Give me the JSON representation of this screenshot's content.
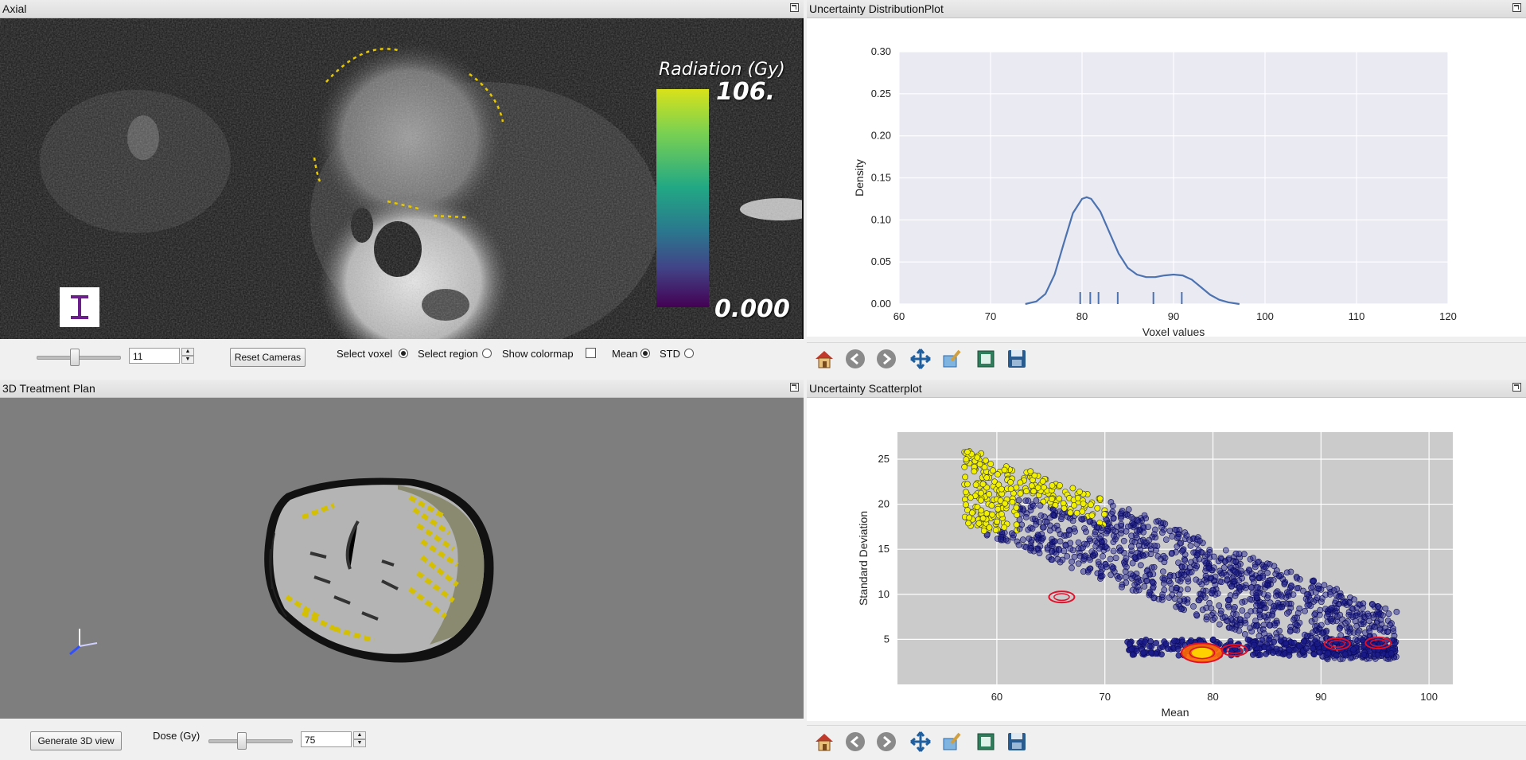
{
  "axial": {
    "title": "Axial",
    "colorbar": {
      "title": "Radiation (Gy)",
      "max_label": "106.",
      "min_label": "0.000"
    },
    "slice_value": "11",
    "reset_label": "Reset Cameras",
    "select_voxel_label": "Select voxel",
    "select_region_label": "Select region",
    "show_colormap_label": "Show colormap",
    "mean_label": "Mean",
    "std_label": "STD",
    "select_voxel_checked": true,
    "select_region_checked": false,
    "show_colormap_checked": false,
    "mean_checked": true,
    "std_checked": false,
    "slider_fraction": 0.45
  },
  "treatment3d": {
    "title": "3D Treatment Plan",
    "generate_label": "Generate 3D view",
    "dose_label": "Dose (Gy)",
    "dose_value": "75",
    "slider_fraction": 0.38
  },
  "distribution": {
    "title": "Uncertainty DistributionPlot",
    "chart_data": {
      "type": "line",
      "xlabel": "Voxel values",
      "ylabel": "Density",
      "xlim": [
        60,
        120
      ],
      "ylim": [
        0,
        0.3
      ],
      "xticks": [
        "60",
        "70",
        "80",
        "90",
        "100",
        "110",
        "120"
      ],
      "yticks": [
        "0.00",
        "0.05",
        "0.10",
        "0.15",
        "0.20",
        "0.25",
        "0.30"
      ],
      "x": [
        73.8,
        75,
        76,
        77,
        78,
        79,
        80,
        80.5,
        81,
        82,
        83,
        84,
        85,
        86,
        87,
        88,
        89,
        90,
        91,
        92,
        93,
        94,
        95,
        96,
        97.2
      ],
      "y": [
        0.0,
        0.003,
        0.012,
        0.035,
        0.072,
        0.108,
        0.125,
        0.127,
        0.125,
        0.11,
        0.085,
        0.06,
        0.043,
        0.035,
        0.032,
        0.032,
        0.034,
        0.035,
        0.034,
        0.029,
        0.02,
        0.011,
        0.005,
        0.002,
        0.0
      ],
      "rug": [
        79.8,
        80.9,
        81.8,
        83.9,
        87.8,
        90.9
      ],
      "grid": true,
      "line_color": "#4c72b0"
    }
  },
  "scatter": {
    "title": "Uncertainty Scatterplot",
    "chart_data": {
      "type": "scatter",
      "xlabel": "Mean",
      "ylabel": "Standard Deviation",
      "xlim": [
        50.8,
        102.2
      ],
      "ylim": [
        0,
        28
      ],
      "xticks": [
        "60",
        "70",
        "80",
        "90",
        "100"
      ],
      "yticks": [
        "5",
        "10",
        "15",
        "20",
        "25"
      ],
      "grid": true,
      "series_colors": {
        "normal": "#1a1a8a",
        "selected": "#f0f000",
        "contour": "#e0102a"
      },
      "selected_region": {
        "x": [
          54.5,
          70
        ],
        "y": [
          17,
          26
        ]
      },
      "contour_centers": [
        {
          "x": 66,
          "y": 9.7
        },
        {
          "x": 79,
          "y": 3.5
        },
        {
          "x": 82,
          "y": 3.8
        },
        {
          "x": 91.5,
          "y": 4.5
        },
        {
          "x": 95.3,
          "y": 4.6
        }
      ]
    }
  },
  "icons": [
    "home-icon",
    "back-arrow-icon",
    "forward-arrow-icon",
    "pan-icon",
    "zoom-icon",
    "subplots-icon",
    "save-icon"
  ]
}
